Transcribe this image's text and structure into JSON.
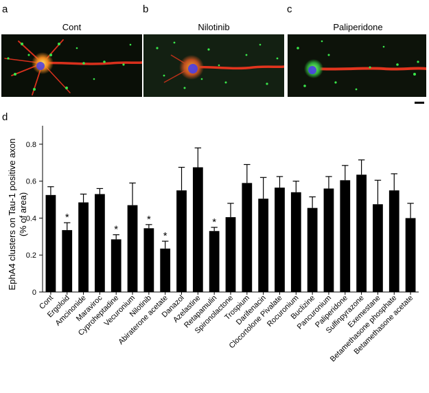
{
  "panels": {
    "a": {
      "letter": "a",
      "title": "Cont"
    },
    "b": {
      "letter": "b",
      "title": "Nilotinib"
    },
    "c": {
      "letter": "c",
      "title": "Paliperidone"
    },
    "d": {
      "letter": "d"
    }
  },
  "colors": {
    "bar": "#000000",
    "axon": "#e2351e",
    "clusters": "#39e64a",
    "nucleus": "#4a3ee6",
    "background": "#0a0f07"
  },
  "chart_data": {
    "type": "bar",
    "ylabel_line1": "EphA4 clusters on Tau-1 positive axon",
    "ylabel_line2": "(% of area)",
    "ylim": [
      0,
      0.9
    ],
    "yticks": [
      0,
      0.2,
      0.4,
      0.6,
      0.8
    ],
    "ytick_labels": [
      "0",
      "0.2",
      "0.4",
      "0.6",
      "0.8"
    ],
    "categories": [
      "Cont",
      "Ergoloid",
      "Amcinonide",
      "Maraviroc",
      "Cyproheptadine",
      "Vecuronium",
      "Nilotinib",
      "Abiraterone acetate",
      "Danazol",
      "Azelastine",
      "Retapamulin",
      "Spironolactone",
      "Trospium",
      "Darifenacin",
      "Clocortolone Pivalate",
      "Rocuronium",
      "Buclizine",
      "Pancuronium",
      "Paliperidone",
      "Sulfinpyrazone",
      "Exemestane",
      "Betamethasone phosphate",
      "Betamethasone acetate"
    ],
    "values": [
      0.525,
      0.335,
      0.485,
      0.53,
      0.285,
      0.47,
      0.345,
      0.235,
      0.55,
      0.675,
      0.33,
      0.405,
      0.59,
      0.505,
      0.565,
      0.54,
      0.455,
      0.56,
      0.605,
      0.635,
      0.475,
      0.55,
      0.4
    ],
    "errors": [
      0.045,
      0.04,
      0.045,
      0.03,
      0.025,
      0.12,
      0.02,
      0.04,
      0.125,
      0.105,
      0.02,
      0.075,
      0.1,
      0.115,
      0.06,
      0.06,
      0.06,
      0.065,
      0.08,
      0.08,
      0.13,
      0.09,
      0.08
    ],
    "significance": [
      "",
      "*",
      "",
      "",
      "*",
      "",
      "*",
      "*",
      "",
      "",
      "*",
      "",
      "",
      "",
      "",
      "",
      "",
      "",
      "",
      "",
      "",
      "",
      ""
    ]
  }
}
